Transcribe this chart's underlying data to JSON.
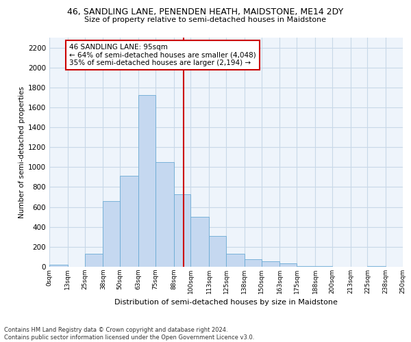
{
  "title1": "46, SANDLING LANE, PENENDEN HEATH, MAIDSTONE, ME14 2DY",
  "title2": "Size of property relative to semi-detached houses in Maidstone",
  "xlabel": "Distribution of semi-detached houses by size in Maidstone",
  "ylabel": "Number of semi-detached properties",
  "footnote": "Contains HM Land Registry data © Crown copyright and database right 2024.\nContains public sector information licensed under the Open Government Licence v3.0.",
  "tick_positions": [
    0,
    13,
    25,
    38,
    50,
    63,
    75,
    88,
    100,
    113,
    125,
    138,
    150,
    163,
    175,
    188,
    200,
    213,
    225,
    238,
    250
  ],
  "tick_labels": [
    "0sqm",
    "13sqm",
    "25sqm",
    "38sqm",
    "50sqm",
    "63sqm",
    "75sqm",
    "88sqm",
    "100sqm",
    "113sqm",
    "125sqm",
    "138sqm",
    "150sqm",
    "163sqm",
    "175sqm",
    "188sqm",
    "200sqm",
    "213sqm",
    "225sqm",
    "238sqm",
    "250sqm"
  ],
  "bar_heights": [
    20,
    0,
    130,
    660,
    910,
    1720,
    1050,
    730,
    500,
    310,
    130,
    75,
    55,
    35,
    10,
    5,
    0,
    0,
    5,
    0
  ],
  "bar_color": "#c5d8f0",
  "bar_edge_color": "#6aaad4",
  "vline_x": 95,
  "vline_color": "#cc0000",
  "box_text_line1": "46 SANDLING LANE: 95sqm",
  "box_text_line2": "← 64% of semi-detached houses are smaller (4,048)",
  "box_text_line3": "35% of semi-detached houses are larger (2,194) →",
  "box_color": "#cc0000",
  "box_facecolor": "white",
  "ylim": [
    0,
    2300
  ],
  "yticks": [
    0,
    200,
    400,
    600,
    800,
    1000,
    1200,
    1400,
    1600,
    1800,
    2000,
    2200
  ],
  "grid_color": "#c8d8e8",
  "bg_color": "#eef4fb"
}
